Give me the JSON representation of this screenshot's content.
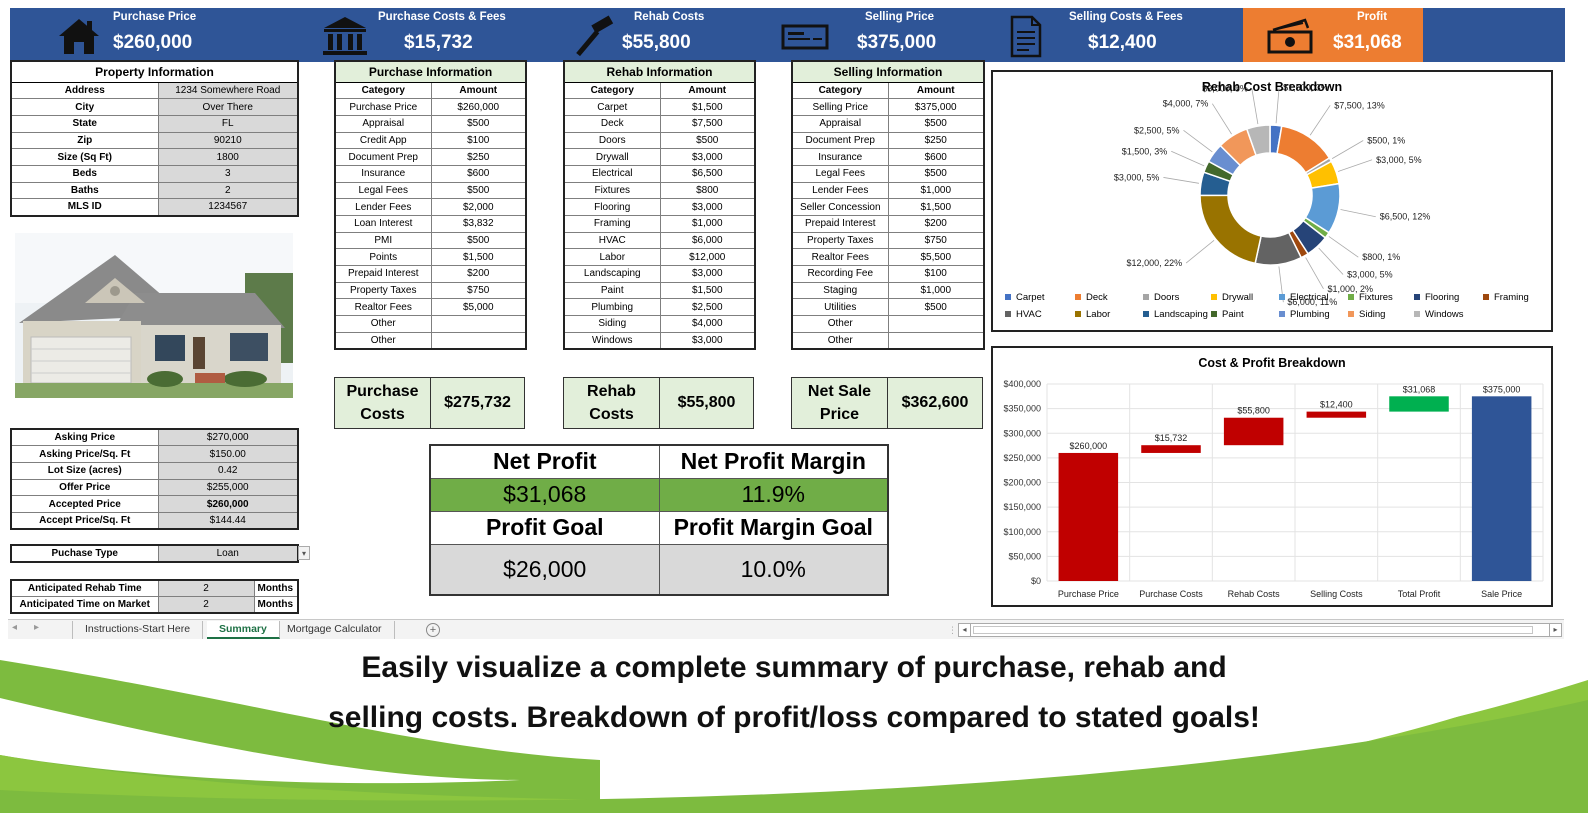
{
  "header": {
    "kpis": [
      {
        "label": "Purchase Price",
        "value": "$260,000",
        "icon": "house-icon"
      },
      {
        "label": "Purchase Costs & Fees",
        "value": "$15,732",
        "icon": "bank-icon"
      },
      {
        "label": "Rehab Costs",
        "value": "$55,800",
        "icon": "hammer-icon"
      },
      {
        "label": "Selling Price",
        "value": "$375,000",
        "icon": "check-icon"
      },
      {
        "label": "Selling Costs & Fees",
        "value": "$12,400",
        "icon": "document-icon"
      },
      {
        "label": "Profit",
        "value": "$31,068",
        "icon": "money-icon"
      }
    ],
    "colors": {
      "banner": "#2F5597",
      "profit": "#ED7D31"
    }
  },
  "property": {
    "title": "Property Information",
    "rows": [
      {
        "label": "Address",
        "value": "1234 Somewhere Road"
      },
      {
        "label": "City",
        "value": "Over There"
      },
      {
        "label": "State",
        "value": "FL"
      },
      {
        "label": "Zip",
        "value": "90210"
      },
      {
        "label": "Size (Sq Ft)",
        "value": "1800"
      },
      {
        "label": "Beds",
        "value": "3"
      },
      {
        "label": "Baths",
        "value": "2"
      },
      {
        "label": "MLS ID",
        "value": "1234567"
      }
    ]
  },
  "pricing": {
    "rows": [
      {
        "label": "Asking Price",
        "value": "$270,000"
      },
      {
        "label": "Asking Price/Sq. Ft",
        "value": "$150.00"
      },
      {
        "label": "Lot Size (acres)",
        "value": "0.42"
      },
      {
        "label": "Offer Price",
        "value": "$255,000"
      },
      {
        "label": "Accepted Price",
        "value": "$260,000"
      },
      {
        "label": "Accept Price/Sq. Ft",
        "value": "$144.44"
      }
    ],
    "purchase_type_label": "Puchase Type",
    "purchase_type_value": "Loan",
    "rehab_time_label": "Anticipated Rehab Time",
    "rehab_time_value": "2",
    "rehab_time_unit": "Months",
    "market_time_label": "Anticipated Time on Market",
    "market_time_value": "2",
    "market_time_unit": "Months"
  },
  "purchase_info": {
    "title": "Purchase Information",
    "col_category": "Category",
    "col_amount": "Amount",
    "rows": [
      [
        "Purchase Price",
        "$260,000"
      ],
      [
        "Appraisal",
        "$500"
      ],
      [
        "Credit App",
        "$100"
      ],
      [
        "Document Prep",
        "$250"
      ],
      [
        "Insurance",
        "$600"
      ],
      [
        "Legal Fees",
        "$500"
      ],
      [
        "Lender Fees",
        "$2,000"
      ],
      [
        "Loan Interest",
        "$3,832"
      ],
      [
        "PMI",
        "$500"
      ],
      [
        "Points",
        "$1,500"
      ],
      [
        "Prepaid Interest",
        "$200"
      ],
      [
        "Property Taxes",
        "$750"
      ],
      [
        "Realtor Fees",
        "$5,000"
      ],
      [
        "Other",
        ""
      ],
      [
        "Other",
        ""
      ]
    ],
    "summary_label": "Purchase Costs",
    "summary_value": "$275,732"
  },
  "rehab_info": {
    "title": "Rehab Information",
    "col_category": "Category",
    "col_amount": "Amount",
    "rows": [
      [
        "Carpet",
        "$1,500"
      ],
      [
        "Deck",
        "$7,500"
      ],
      [
        "Doors",
        "$500"
      ],
      [
        "Drywall",
        "$3,000"
      ],
      [
        "Electrical",
        "$6,500"
      ],
      [
        "Fixtures",
        "$800"
      ],
      [
        "Flooring",
        "$3,000"
      ],
      [
        "Framing",
        "$1,000"
      ],
      [
        "HVAC",
        "$6,000"
      ],
      [
        "Labor",
        "$12,000"
      ],
      [
        "Landscaping",
        "$3,000"
      ],
      [
        "Paint",
        "$1,500"
      ],
      [
        "Plumbing",
        "$2,500"
      ],
      [
        "Siding",
        "$4,000"
      ],
      [
        "Windows",
        "$3,000"
      ]
    ],
    "summary_label": "Rehab Costs",
    "summary_value": "$55,800"
  },
  "selling_info": {
    "title": "Selling Information",
    "col_category": "Category",
    "col_amount": "Amount",
    "rows": [
      [
        "Selling Price",
        "$375,000"
      ],
      [
        "Appraisal",
        "$500"
      ],
      [
        "Document Prep",
        "$250"
      ],
      [
        "Insurance",
        "$600"
      ],
      [
        "Legal Fees",
        "$500"
      ],
      [
        "Lender Fees",
        "$1,000"
      ],
      [
        "Seller Concession",
        "$1,500"
      ],
      [
        "Prepaid Interest",
        "$200"
      ],
      [
        "Property Taxes",
        "$750"
      ],
      [
        "Realtor Fees",
        "$5,500"
      ],
      [
        "Recording Fee",
        "$100"
      ],
      [
        "Staging",
        "$1,000"
      ],
      [
        "Utilities",
        "$500"
      ],
      [
        "Other",
        ""
      ],
      [
        "Other",
        ""
      ]
    ],
    "summary_label": "Net Sale Price",
    "summary_value": "$362,600"
  },
  "net_profit": {
    "net_profit_label": "Net Profit",
    "net_profit_value": "$31,068",
    "margin_label": "Net Profit Margin",
    "margin_value": "11.9%",
    "goal_label": "Profit Goal",
    "goal_value": "$26,000",
    "margin_goal_label": "Profit Margin Goal",
    "margin_goal_value": "10.0%"
  },
  "tabs": {
    "items": [
      "Instructions-Start Here",
      "Summary",
      "Mortgage Calculator"
    ],
    "active": "Summary"
  },
  "footer": {
    "line1": "Easily visualize a complete summary of purchase, rehab and",
    "line2": "selling costs. Breakdown of profit/loss compared to stated goals!"
  },
  "chart_data": [
    {
      "type": "pie",
      "title": "Rehab Cost Breakdown",
      "categories": [
        "Carpet",
        "Deck",
        "Doors",
        "Drywall",
        "Electrical",
        "Fixtures",
        "Flooring",
        "Framing",
        "HVAC",
        "Labor",
        "Landscaping",
        "Paint",
        "Plumbing",
        "Siding",
        "Windows"
      ],
      "values": [
        1500,
        7500,
        500,
        3000,
        6500,
        800,
        3000,
        1000,
        6000,
        12000,
        3000,
        1500,
        2500,
        4000,
        3000
      ],
      "data_labels": [
        "$1,500, 3%",
        "$7,500, 13%",
        "$500, 1%",
        "$3,000, 5%",
        "$6,500, 12%",
        "$800, 1%",
        "$3,000, 5%",
        "$1,000, 2%",
        "$6,000, 11%",
        "$12,000, 22%",
        "$3,000, 5%",
        "$1,500, 3%",
        "$2,500, 5%",
        "$4,000, 7%",
        "$3,000, 5%"
      ],
      "colors": [
        "#4472C4",
        "#ED7D31",
        "#A5A5A5",
        "#FFC000",
        "#5B9BD5",
        "#70AD47",
        "#264478",
        "#9E480E",
        "#636363",
        "#997300",
        "#255E91",
        "#43682B",
        "#698ED0",
        "#F1975A",
        "#B7B7B7"
      ],
      "legend_position": "bottom"
    },
    {
      "type": "bar",
      "title": "Cost & Profit Breakdown",
      "categories": [
        "Purchase Price",
        "Purchase Costs",
        "Rehab Costs",
        "Selling Costs",
        "Total Profit",
        "Sale Price"
      ],
      "series": [
        {
          "values": [
            [
              0,
              260000
            ],
            [
              260000,
              275732
            ],
            [
              275732,
              331532
            ],
            [
              331532,
              343932
            ],
            [
              343932,
              375000
            ],
            [
              0,
              375000
            ]
          ]
        }
      ],
      "data_labels": [
        "$260,000",
        "$15,732",
        "$55,800",
        "$12,400",
        "$31,068",
        "$375,000"
      ],
      "colors": [
        "#C00000",
        "#C00000",
        "#C00000",
        "#C00000",
        "#00B050",
        "#2F5597"
      ],
      "y_ticks": [
        "$0",
        "$50,000",
        "$100,000",
        "$150,000",
        "$200,000",
        "$250,000",
        "$300,000",
        "$350,000",
        "$400,000"
      ],
      "ylim": [
        0,
        400000
      ],
      "grid": true
    }
  ]
}
